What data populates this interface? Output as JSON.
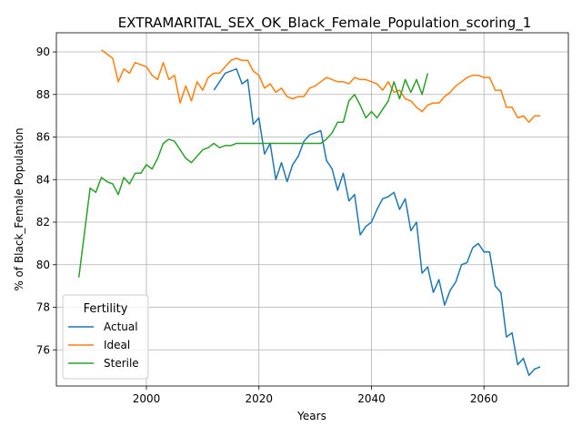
{
  "chart_data": {
    "type": "line",
    "title": "EXTRAMARITAL_SEX_OK_Black_Female_Population_scoring_1",
    "xlabel": "Years",
    "ylabel": "% of Black_Female Population",
    "xlim": [
      1984,
      2075
    ],
    "ylim": [
      74.3,
      90.9
    ],
    "xticks": [
      2000,
      2020,
      2040,
      2060
    ],
    "yticks": [
      76,
      78,
      80,
      82,
      84,
      86,
      88,
      90
    ],
    "grid": true,
    "legend": {
      "title": "Fertility",
      "placement": "lower-left"
    },
    "series": [
      {
        "name": "Actual",
        "color": "#1f77b4",
        "x": [
          2012,
          2013,
          2014,
          2015,
          2016,
          2017,
          2018,
          2019,
          2020,
          2021,
          2022,
          2023,
          2024,
          2025,
          2026,
          2027,
          2028,
          2029,
          2030,
          2031,
          2032,
          2033,
          2034,
          2035,
          2036,
          2037,
          2038,
          2039,
          2040,
          2041,
          2042,
          2043,
          2044,
          2045,
          2046,
          2047,
          2048,
          2049,
          2050,
          2051,
          2052,
          2053,
          2054,
          2055,
          2056,
          2057,
          2058,
          2059,
          2060,
          2061,
          2062,
          2063,
          2064,
          2065,
          2066,
          2067,
          2068,
          2069,
          2070
        ],
        "y": [
          88.2,
          88.6,
          89.0,
          89.1,
          89.2,
          88.5,
          88.7,
          86.6,
          86.9,
          85.2,
          85.7,
          84.0,
          84.8,
          83.9,
          84.7,
          85.1,
          85.8,
          86.1,
          86.2,
          86.3,
          84.9,
          84.5,
          83.5,
          84.3,
          83.0,
          83.3,
          81.4,
          81.8,
          82.0,
          82.6,
          83.1,
          83.2,
          83.4,
          82.6,
          83.1,
          81.6,
          82.0,
          79.6,
          79.9,
          78.7,
          79.3,
          78.1,
          78.8,
          79.2,
          80.0,
          80.1,
          80.8,
          81.0,
          80.6,
          80.6,
          79.0,
          78.7,
          76.6,
          76.8,
          75.3,
          75.6,
          74.8,
          75.1,
          75.2
        ]
      },
      {
        "name": "Ideal",
        "color": "#ff7f0e",
        "x": [
          1992,
          1993,
          1994,
          1995,
          1996,
          1997,
          1998,
          1999,
          2000,
          2001,
          2002,
          2003,
          2004,
          2005,
          2006,
          2007,
          2008,
          2009,
          2010,
          2011,
          2012,
          2013,
          2014,
          2015,
          2016,
          2017,
          2018,
          2019,
          2020,
          2021,
          2022,
          2023,
          2024,
          2025,
          2026,
          2027,
          2028,
          2029,
          2030,
          2031,
          2032,
          2033,
          2034,
          2035,
          2036,
          2037,
          2038,
          2039,
          2040,
          2041,
          2042,
          2043,
          2044,
          2045,
          2046,
          2047,
          2048,
          2049,
          2050,
          2051,
          2052,
          2053,
          2054,
          2055,
          2056,
          2057,
          2058,
          2059,
          2060,
          2061,
          2062,
          2063,
          2064,
          2065,
          2066,
          2067,
          2068,
          2069,
          2070
        ],
        "y": [
          90.1,
          89.9,
          89.7,
          88.6,
          89.2,
          89.0,
          89.5,
          89.4,
          89.3,
          88.9,
          88.7,
          89.5,
          88.7,
          88.9,
          87.6,
          88.4,
          87.7,
          88.6,
          88.2,
          88.8,
          89.0,
          89.0,
          89.3,
          89.6,
          89.7,
          89.6,
          89.6,
          89.1,
          88.9,
          88.3,
          88.5,
          88.1,
          88.3,
          87.9,
          87.8,
          87.9,
          87.9,
          88.3,
          88.4,
          88.6,
          88.8,
          88.7,
          88.6,
          88.6,
          88.5,
          88.8,
          88.7,
          88.7,
          88.6,
          88.5,
          88.2,
          88.6,
          88.1,
          88.2,
          87.8,
          87.7,
          87.4,
          87.2,
          87.5,
          87.6,
          87.6,
          87.9,
          88.1,
          88.4,
          88.6,
          88.8,
          88.9,
          88.9,
          88.8,
          88.8,
          88.2,
          88.2,
          87.4,
          87.4,
          86.9,
          87.0,
          86.7,
          87.0,
          87.0
        ]
      },
      {
        "name": "Sterile",
        "color": "#2ca02c",
        "x": [
          1988,
          1989,
          1990,
          1991,
          1992,
          1993,
          1994,
          1995,
          1996,
          1997,
          1998,
          1999,
          2000,
          2001,
          2002,
          2003,
          2004,
          2005,
          2006,
          2007,
          2008,
          2009,
          2010,
          2011,
          2012,
          2013,
          2014,
          2015,
          2016,
          2017,
          2018,
          2019,
          2020,
          2021,
          2022,
          2023,
          2024,
          2025,
          2026,
          2027,
          2028,
          2029,
          2030,
          2031,
          2032,
          2033,
          2034,
          2035,
          2036,
          2037,
          2038,
          2039,
          2040,
          2041,
          2042,
          2043,
          2044,
          2045,
          2046,
          2047,
          2048,
          2049,
          2050
        ],
        "y": [
          79.4,
          81.5,
          83.6,
          83.4,
          84.1,
          83.9,
          83.8,
          83.3,
          84.1,
          83.8,
          84.3,
          84.3,
          84.7,
          84.5,
          85.0,
          85.7,
          85.9,
          85.8,
          85.4,
          85.0,
          84.8,
          85.1,
          85.4,
          85.5,
          85.7,
          85.5,
          85.6,
          85.6,
          85.7,
          85.7,
          85.7,
          85.7,
          85.7,
          85.7,
          85.7,
          85.7,
          85.7,
          85.7,
          85.7,
          85.7,
          85.7,
          85.7,
          85.7,
          85.7,
          85.9,
          86.2,
          86.7,
          86.7,
          87.7,
          88.0,
          87.5,
          86.9,
          87.2,
          86.9,
          87.3,
          87.7,
          88.6,
          87.8,
          88.7,
          88.1,
          88.7,
          88.0,
          89.0
        ]
      }
    ]
  }
}
